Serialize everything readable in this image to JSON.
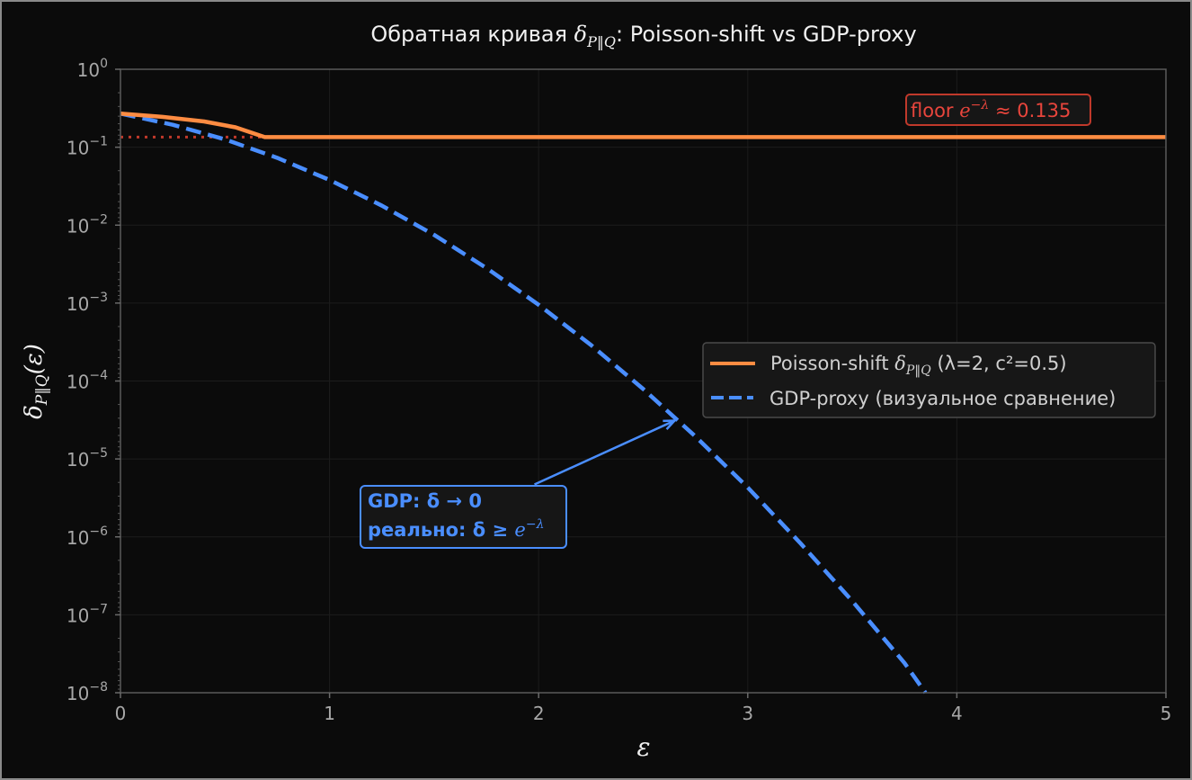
{
  "chart_data": {
    "type": "line",
    "title": {
      "prefix": "Обратная кривая ",
      "math": "δ",
      "sub": "P‖Q",
      "suffix": ": Poisson-shift vs GDP-proxy"
    },
    "xlabel": "ε",
    "ylabel": {
      "math": "δ",
      "sub": "P‖Q",
      "suffix": "(ε)"
    },
    "xlim": [
      0,
      5
    ],
    "ylim": [
      1e-08,
      1
    ],
    "yscale": "log",
    "grid": true,
    "xticks": [
      0,
      1,
      2,
      3,
      4,
      5
    ],
    "xtick_labels": [
      "0",
      "1",
      "2",
      "3",
      "4",
      "5"
    ],
    "ytick_base": "10",
    "ytick_exponents": [
      "0",
      "−1",
      "−2",
      "−3",
      "−4",
      "−5",
      "−6",
      "−7",
      "−8"
    ],
    "series": [
      {
        "name": {
          "prefix": "Poisson-shift ",
          "math": "δ",
          "sub": "P‖Q",
          "suffix": " (λ=2, c²=0.5)"
        },
        "color": "#ff8c42",
        "style": "solid",
        "x": [
          0,
          0.2,
          0.4,
          0.55,
          0.69,
          5
        ],
        "y": [
          0.27,
          0.245,
          0.214,
          0.18,
          0.135,
          0.135
        ]
      },
      {
        "name": {
          "prefix": "GDP-proxy (визуальное сравнение)",
          "math": "",
          "sub": "",
          "suffix": ""
        },
        "color": "#4a8eff",
        "style": "dashed",
        "x": [
          0,
          0.25,
          0.5,
          0.75,
          1,
          1.25,
          1.5,
          1.75,
          2,
          2.25,
          2.5,
          2.75,
          3,
          3.25,
          3.5,
          3.75,
          3.85
        ],
        "y": [
          0.27,
          0.194,
          0.126,
          0.073,
          0.038,
          0.0178,
          0.0075,
          0.00282,
          0.00095,
          0.00029,
          7.9e-05,
          1.94e-05,
          4.3e-06,
          8.4e-07,
          1.5e-07,
          2.4e-08,
          1e-08
        ]
      }
    ],
    "floor_line": {
      "y": 0.135,
      "x": [
        0,
        0.69
      ],
      "color": "#c0392b",
      "style": "dotted"
    },
    "annotations": [
      {
        "id": "floor",
        "text_prefix": "floor ",
        "math": "e",
        "sup": "−λ",
        "text_suffix": " ≈ 0.135",
        "color": "#e8453c"
      },
      {
        "id": "gdp",
        "line1": "GDP: δ → 0",
        "line2_prefix": "реально: δ ≥ ",
        "math": "e",
        "sup": "−λ",
        "color": "#4a8eff",
        "arrow_to": [
          2.65,
          3.1e-05
        ],
        "arrow_from": [
          1.98,
          4.7e-06
        ]
      }
    ],
    "legend": {
      "placement": "center-right"
    }
  }
}
